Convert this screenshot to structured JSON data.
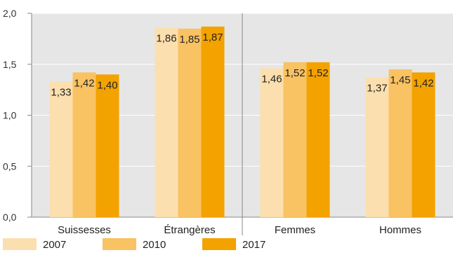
{
  "chart_data": {
    "type": "bar",
    "categories": [
      "Suissesses",
      "Étrangères",
      "Femmes",
      "Hommes"
    ],
    "series": [
      {
        "name": "2007",
        "values": [
          1.33,
          1.86,
          1.46,
          1.37
        ],
        "labels": [
          "1,33",
          "1,86",
          "1,46",
          "1,37"
        ],
        "color": "#FCDFAE"
      },
      {
        "name": "2010",
        "values": [
          1.42,
          1.85,
          1.52,
          1.45
        ],
        "labels": [
          "1,42",
          "1,85",
          "1,52",
          "1,45"
        ],
        "color": "#F9C262"
      },
      {
        "name": "2017",
        "values": [
          1.4,
          1.87,
          1.52,
          1.42
        ],
        "labels": [
          "1,40",
          "1,87",
          "1,52",
          "1,42"
        ],
        "color": "#F3A200"
      }
    ],
    "ylim": [
      0,
      2
    ],
    "yticks": [
      0,
      0.5,
      1.0,
      1.5,
      2.0
    ],
    "ytick_labels": [
      "0,0",
      "0,5",
      "1,0",
      "1,5",
      "2,0"
    ],
    "grid": true,
    "legend_position": "bottom",
    "divider_after_category": 2,
    "plot_background": "#E6E6E6",
    "grid_color": "#FFFFFF",
    "axis_color": "#888888"
  }
}
